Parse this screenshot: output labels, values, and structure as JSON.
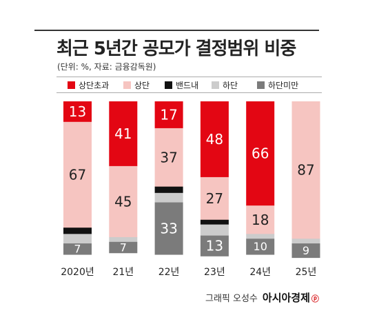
{
  "page": {
    "title": "최근 5년간 공모가 결정범위 비중",
    "subtitle": "(단위: %, 자료: 금융감독원)",
    "credit_prefix": "그래픽 오성수",
    "credit_brand": "아시아경제",
    "credit_mark": "ⓟ"
  },
  "chart_data": {
    "type": "bar",
    "stacked": true,
    "categories": [
      "2020년",
      "21년",
      "22년",
      "23년",
      "24년",
      "25년"
    ],
    "series": [
      {
        "name": "상단초과",
        "color": "#e30613",
        "values": [
          13,
          41,
          17,
          48,
          66,
          0
        ]
      },
      {
        "name": "상단",
        "color": "#f6c5c1",
        "values": [
          67,
          45,
          37,
          27,
          18,
          87
        ]
      },
      {
        "name": "밴드내",
        "color": "#111111",
        "values": [
          4,
          0,
          4,
          3,
          0,
          0
        ]
      },
      {
        "name": "하단",
        "color": "#cccccc",
        "values": [
          6,
          3,
          6,
          7,
          3,
          3
        ]
      },
      {
        "name": "하단미만",
        "color": "#7b7b7b",
        "values": [
          7,
          7,
          33,
          13,
          10,
          9
        ]
      }
    ],
    "labels": [
      [
        {
          "series": 0,
          "text": "13"
        },
        {
          "series": 1,
          "text": "67"
        },
        {
          "series": 4,
          "text": "7"
        }
      ],
      [
        {
          "series": 0,
          "text": "41"
        },
        {
          "series": 1,
          "text": "45"
        },
        {
          "series": 4,
          "text": "7"
        }
      ],
      [
        {
          "series": 0,
          "text": "17"
        },
        {
          "series": 1,
          "text": "37"
        },
        {
          "series": 4,
          "text": "33"
        }
      ],
      [
        {
          "series": 0,
          "text": "48"
        },
        {
          "series": 1,
          "text": "27"
        },
        {
          "series": 4,
          "text": "13"
        }
      ],
      [
        {
          "series": 0,
          "text": "66"
        },
        {
          "series": 1,
          "text": "18"
        },
        {
          "series": 4,
          "text": "10"
        }
      ],
      [
        {
          "series": 1,
          "text": "87"
        },
        {
          "series": 4,
          "text": "9"
        }
      ]
    ],
    "ylim": [
      0,
      100
    ],
    "legend_position": "top",
    "grid": false
  }
}
